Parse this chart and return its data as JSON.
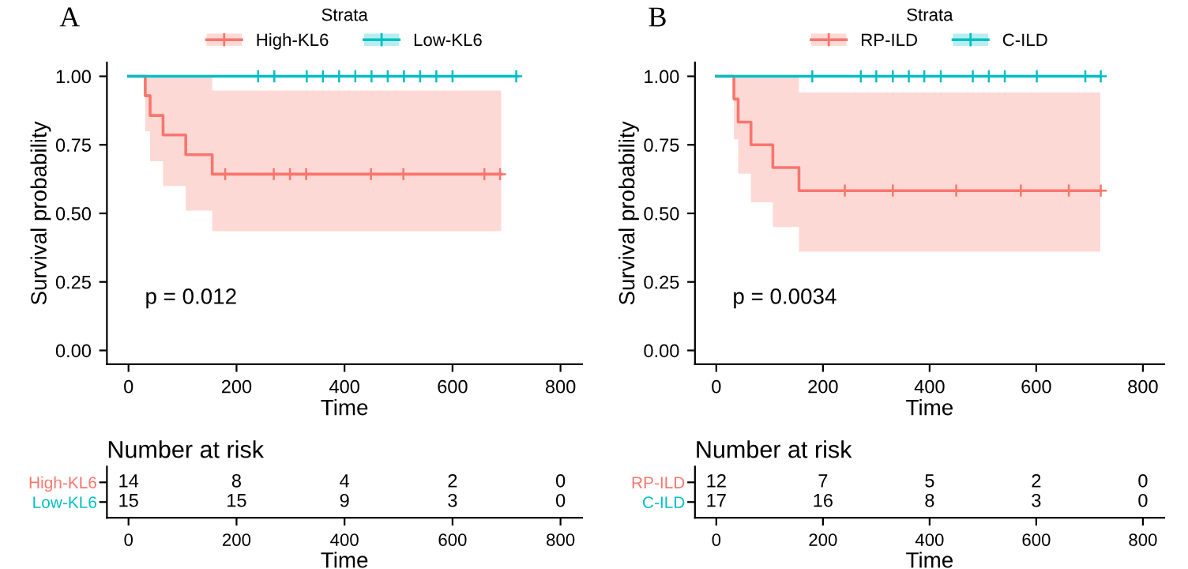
{
  "chart_data": [
    {
      "type": "step",
      "title": "A",
      "xlabel": "Time",
      "ylabel": "Survival probability",
      "legend_title": "Strata",
      "legend": "top",
      "annotations": [
        "p = 0.012"
      ],
      "xlim": [
        -40,
        840
      ],
      "ylim": [
        -0.05,
        1.05
      ],
      "xticks": [
        0,
        200,
        400,
        600,
        800
      ],
      "yticks": [
        {
          "value": 0,
          "label": "0.00"
        },
        {
          "value": 0.25,
          "label": "0.25"
        },
        {
          "value": 0.5,
          "label": "0.50"
        },
        {
          "value": 0.75,
          "label": "0.75"
        },
        {
          "value": 1,
          "label": "1.00"
        }
      ],
      "series": [
        {
          "name": "High-KL6",
          "type": "step",
          "color": "#f8766d",
          "x": [
            0,
            31,
            40,
            64,
            106,
            155,
            690
          ],
          "values": [
            1,
            0.929,
            0.857,
            0.786,
            0.714,
            0.643,
            0.643
          ],
          "lower": [
            1,
            0.8,
            0.69,
            0.6,
            0.51,
            0.435,
            0.435
          ],
          "upper": [
            1,
            1,
            1,
            1,
            1,
            0.948,
            0.948
          ]
        },
        {
          "name": "Low-KL6",
          "type": "step",
          "color": "#00bfc4",
          "x": [
            0,
            720
          ],
          "values": [
            1,
            1
          ]
        },
        {
          "type": "scatter",
          "marker": "cross",
          "color": "#f8766d",
          "x": [
            179,
            269,
            299,
            329,
            449,
            509,
            659,
            688
          ],
          "values": [
            0.643,
            0.643,
            0.643,
            0.643,
            0.643,
            0.643,
            0.643,
            0.643
          ]
        },
        {
          "type": "scatter",
          "marker": "cross",
          "color": "#00bfc4",
          "x": [
            240,
            270,
            330,
            360,
            390,
            420,
            450,
            480,
            510,
            540,
            570,
            600,
            718
          ],
          "values": [
            1,
            1,
            1,
            1,
            1,
            1,
            1,
            1,
            1,
            1,
            1,
            1,
            1
          ]
        }
      ]
    },
    {
      "type": "heatmap",
      "title": "Number at risk",
      "xlabel": "Time",
      "categories": [
        "0",
        "200",
        "400",
        "600",
        "800"
      ],
      "y_categories": [
        "High-KL6",
        "Low-KL6"
      ],
      "colors": [
        "#f8766d",
        "#00bfc4"
      ],
      "cells": [
        [
          14,
          8,
          4,
          2,
          0
        ],
        [
          15,
          15,
          9,
          3,
          0
        ]
      ],
      "data_labels": true
    },
    {
      "type": "step",
      "title": "B",
      "xlabel": "Time",
      "ylabel": "Survival probability",
      "legend_title": "Strata",
      "legend": "top",
      "annotations": [
        "p = 0.0034"
      ],
      "xlim": [
        -40,
        840
      ],
      "ylim": [
        -0.05,
        1.05
      ],
      "xticks": [
        0,
        200,
        400,
        600,
        800
      ],
      "yticks": [
        {
          "value": 0,
          "label": "0.00"
        },
        {
          "value": 0.25,
          "label": "0.25"
        },
        {
          "value": 0.5,
          "label": "0.50"
        },
        {
          "value": 0.75,
          "label": "0.75"
        },
        {
          "value": 1,
          "label": "1.00"
        }
      ],
      "series": [
        {
          "name": "RP-ILD",
          "type": "step",
          "color": "#f8766d",
          "x": [
            0,
            33,
            41,
            65,
            106,
            155,
            720
          ],
          "values": [
            1,
            0.917,
            0.833,
            0.75,
            0.667,
            0.583,
            0.583
          ],
          "lower": [
            1,
            0.77,
            0.645,
            0.54,
            0.45,
            0.36,
            0.36
          ],
          "upper": [
            1,
            1,
            1,
            1,
            1,
            0.941,
            0.941
          ]
        },
        {
          "name": "C-ILD",
          "type": "step",
          "color": "#00bfc4",
          "x": [
            0,
            721
          ],
          "values": [
            1,
            1
          ]
        },
        {
          "type": "scatter",
          "marker": "cross",
          "color": "#f8766d",
          "x": [
            241,
            331,
            450,
            571,
            661,
            721
          ],
          "values": [
            0.583,
            0.583,
            0.583,
            0.583,
            0.583,
            0.583
          ]
        },
        {
          "type": "scatter",
          "marker": "cross",
          "color": "#00bfc4",
          "x": [
            180,
            271,
            300,
            331,
            361,
            390,
            421,
            481,
            511,
            541,
            601,
            692,
            721
          ],
          "values": [
            1,
            1,
            1,
            1,
            1,
            1,
            1,
            1,
            1,
            1,
            1,
            1,
            1
          ]
        }
      ]
    },
    {
      "type": "heatmap",
      "title": "Number at risk",
      "xlabel": "Time",
      "categories": [
        "0",
        "200",
        "400",
        "600",
        "800"
      ],
      "y_categories": [
        "RP-ILD",
        "C-ILD"
      ],
      "colors": [
        "#f8766d",
        "#00bfc4"
      ],
      "cells": [
        [
          12,
          7,
          5,
          2,
          0
        ],
        [
          17,
          16,
          8,
          3,
          0
        ]
      ],
      "data_labels": true
    }
  ]
}
